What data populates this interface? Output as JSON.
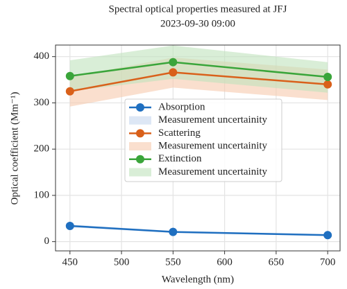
{
  "chart_data": {
    "type": "line",
    "title": "Spectral optical properties measured at JFJ",
    "subtitle": "2023-09-30 09:00",
    "x_label": "Wavelength (nm)",
    "y_label": "Optical coefficient (Mm⁻¹)",
    "x": [
      450,
      550,
      700
    ],
    "xlim": [
      436,
      712
    ],
    "xticks": [
      450,
      500,
      550,
      600,
      650,
      700
    ],
    "ylim": [
      -20,
      425
    ],
    "yticks": [
      0,
      100,
      200,
      300,
      400
    ],
    "grid": true,
    "legend": "center",
    "series": [
      {
        "name": "Absorption",
        "color": "#1f6fc0",
        "values": [
          34,
          21,
          14
        ],
        "band": {
          "name": "Measurement uncertainity",
          "color": "#c6d7ee",
          "lower": [
            31,
            19,
            12
          ],
          "upper": [
            37,
            23,
            16
          ]
        }
      },
      {
        "name": "Scattering",
        "color": "#d9601a",
        "values": [
          325,
          366,
          340
        ],
        "band": {
          "name": "Measurement uncertainity",
          "color": "#f6c9ad",
          "lower": [
            292,
            333,
            306
          ],
          "upper": [
            356,
            398,
            372
          ]
        }
      },
      {
        "name": "Extinction",
        "color": "#3aa53a",
        "values": [
          358,
          388,
          356
        ],
        "band": {
          "name": "Measurement uncertainity",
          "color": "#bfe2bc",
          "lower": [
            325,
            352,
            322
          ],
          "upper": [
            392,
            424,
            388
          ]
        }
      }
    ]
  }
}
